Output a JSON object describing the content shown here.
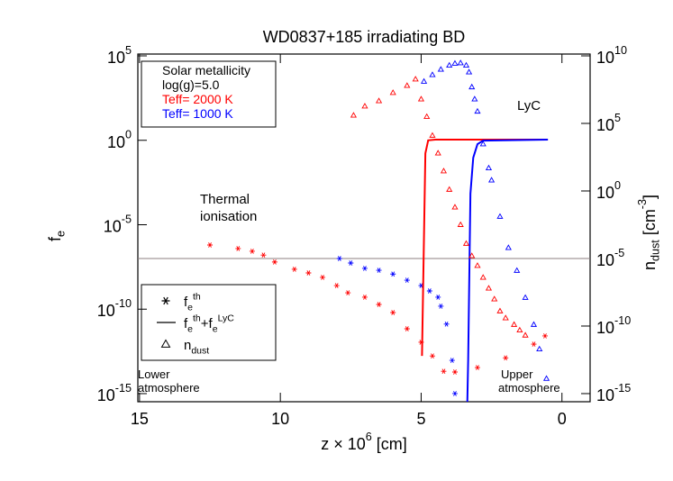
{
  "chart_data": {
    "type": "line",
    "title": "WD0837+185 irradiating BD",
    "x_label": "z × 10^{6} [cm]",
    "y_label": "f_e",
    "y2_label": "n_{dust} [cm^{-3}]",
    "log_y": true,
    "log_y2": true,
    "xlim": [
      15.06,
      -1.0
    ],
    "xticks": [
      15,
      10,
      5,
      0
    ],
    "ylim": [
      3.3e-16,
      128000
    ],
    "yticks": [
      {
        "value": 1e-15,
        "label": "10^{-15}"
      },
      {
        "value": 1e-10,
        "label": "10^{-10}"
      },
      {
        "value": 1e-05,
        "label": "10^{-5}"
      },
      {
        "value": 1,
        "label": "10^{0}"
      },
      {
        "value": 100000,
        "label": "10^{5}"
      }
    ],
    "y2lim": [
      2.5e-16,
      13600000000
    ],
    "y2ticks": [
      {
        "value": 1e-15,
        "label": "10^{-15}"
      },
      {
        "value": 1e-10,
        "label": "10^{-10}"
      },
      {
        "value": 1e-05,
        "label": "10^{-5}"
      },
      {
        "value": 1,
        "label": "10^{0}"
      },
      {
        "value": 100000,
        "label": "10^{5}"
      },
      {
        "value": 10000000000,
        "label": "10^{10}"
      }
    ],
    "hlines": [
      {
        "value": 1e-05,
        "axis": "y2",
        "color": "#8c7f80"
      }
    ],
    "series": [
      {
        "style": "markers",
        "marker": "star",
        "color": "#ff0000",
        "x": [
          12.5,
          11.5,
          11.0,
          10.6,
          10.2,
          9.5,
          9.0,
          8.5,
          8.0,
          7.6,
          7.0,
          6.5,
          6.0,
          5.5,
          5.0,
          4.6,
          4.2,
          3.8,
          3.0,
          2.0,
          1.0,
          0.6
        ],
        "values": [
          6.3e-07,
          3.9e-07,
          2.7e-07,
          1.6e-07,
          6.2e-08,
          2.3e-08,
          1.4e-08,
          7.6e-09,
          2.5e-09,
          9.3e-10,
          5.1e-10,
          1.9e-10,
          6.3e-11,
          6.9e-12,
          1.1e-12,
          1.7e-13,
          2.1e-14,
          1.9e-14,
          3.5e-14,
          1.3e-13,
          8.5e-13,
          2.6e-12
        ]
      },
      {
        "style": "markers",
        "marker": "star",
        "color": "#0000ff",
        "x": [
          7.9,
          7.5,
          7.0,
          6.5,
          6.0,
          5.5,
          5.0,
          4.7,
          4.4,
          4.3,
          4.1,
          3.9,
          3.8
        ],
        "values": [
          1e-07,
          5.4e-08,
          2.6e-08,
          2e-08,
          1.2e-08,
          5.2e-09,
          2.5e-09,
          1.2e-09,
          5.1e-10,
          1.5e-10,
          1.3e-11,
          9.3e-14,
          1e-15
        ]
      },
      {
        "style": "line",
        "color": "#ff0000",
        "x": [
          4.97,
          4.85,
          4.75,
          4.5,
          3.0,
          0.5
        ],
        "values": [
          1.7e-13,
          0.17,
          1.0,
          1.1,
          1.1,
          1.1
        ]
      },
      {
        "style": "line",
        "color": "#0000ff",
        "x": [
          3.36,
          3.33,
          3.25,
          3.15,
          3.0,
          2.8,
          0.5
        ],
        "values": [
          3.3e-16,
          1e-13,
          0.0007,
          0.093,
          0.59,
          0.95,
          1.1
        ]
      },
      {
        "style": "markers",
        "marker": "triangle",
        "color": "#ff0000",
        "axis": "y2",
        "x": [
          7.4,
          7.0,
          6.5,
          6.0,
          5.5,
          5.2,
          5.0,
          4.8,
          4.6,
          4.4,
          4.2,
          4.0,
          3.8,
          3.6,
          3.4,
          3.2,
          3.0,
          2.8,
          2.6,
          2.4,
          2.2,
          2.0,
          1.7,
          1.5,
          1.3
        ],
        "values": [
          400000,
          1900000,
          4700000,
          19000000,
          63000000,
          190000000,
          6300000,
          320000,
          13000,
          630,
          30,
          1.3,
          0.063,
          0.0032,
          0.00013,
          1.6e-05,
          3e-06,
          4e-07,
          6.3e-08,
          1e-08,
          1.3e-09,
          4e-10,
          1.3e-10,
          5e-11,
          2.1e-11
        ]
      },
      {
        "style": "markers",
        "marker": "triangle",
        "color": "#0000ff",
        "axis": "y2",
        "x": [
          4.9,
          4.6,
          4.3,
          4.0,
          3.8,
          3.6,
          3.4,
          3.3,
          3.2,
          3.1,
          3.0,
          2.8,
          2.6,
          2.5,
          2.2,
          1.9,
          1.6,
          1.3,
          1.0,
          0.8,
          0.55
        ],
        "values": [
          130000000,
          400000000,
          1000000000,
          2000000000,
          2800000000,
          3000000000,
          2000000000,
          630000000,
          50000000,
          6300000,
          790000,
          3000,
          50,
          6.3,
          0.013,
          6.3e-05,
          1.3e-06,
          1.3e-08,
          1.3e-10,
          2e-12,
          1.3e-14
        ]
      }
    ],
    "info_box": [
      {
        "text": "Solar metallicity",
        "color": "#000000"
      },
      {
        "text": "log(g)=5.0",
        "color": "#000000"
      },
      {
        "text": "Teff= 2000 K",
        "color": "#ff0000"
      },
      {
        "text": "Teff= 1000 K",
        "color": "#0000ff"
      }
    ],
    "legend": [
      {
        "label": "f_e^{th}",
        "marker": "star"
      },
      {
        "label": "f_e^{th}+f_e^{LyC}",
        "marker": "line"
      },
      {
        "label": "n_{dust}",
        "marker": "triangle"
      }
    ],
    "annotations": [
      "LyC",
      "Thermal",
      "ionisation",
      "Lower",
      "atmosphere",
      "Upper",
      "atmosphere"
    ]
  }
}
